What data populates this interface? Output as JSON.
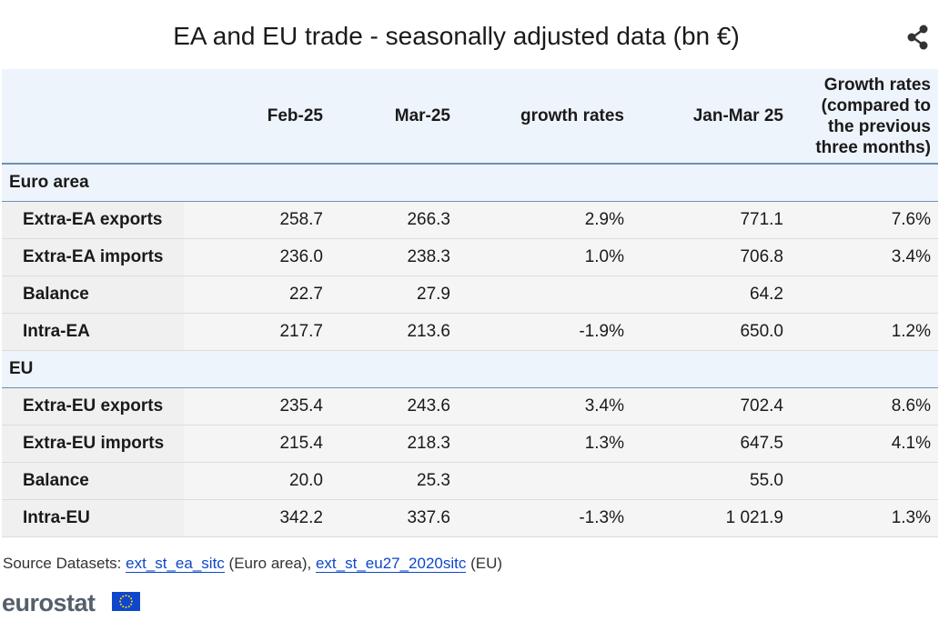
{
  "title": "EA and EU trade - seasonally adjusted data (bn €)",
  "icons": {
    "share": "share-icon"
  },
  "colors": {
    "header_bg": "#eef4fb",
    "row_bg": "#f5f5f5",
    "link": "#0e47cb",
    "flag_blue": "#0e47cb",
    "flag_stars": "#ffd617"
  },
  "chart_data": {
    "type": "table",
    "columns": [
      "",
      "Feb-25",
      "Mar-25",
      "growth rates",
      "Jan-Mar 25",
      "Growth rates (compared to the previous three months)"
    ],
    "groups": [
      {
        "name": "Euro area",
        "rows": [
          {
            "label": "Extra-EA exports",
            "values": [
              "258.7",
              "266.3",
              "2.9%",
              "771.1",
              "7.6%"
            ]
          },
          {
            "label": "Extra-EA imports",
            "values": [
              "236.0",
              "238.3",
              "1.0%",
              "706.8",
              "3.4%"
            ]
          },
          {
            "label": "Balance",
            "values": [
              "22.7",
              "27.9",
              "",
              "64.2",
              ""
            ]
          },
          {
            "label": "Intra-EA",
            "values": [
              "217.7",
              "213.6",
              "-1.9%",
              "650.0",
              "1.2%"
            ]
          }
        ]
      },
      {
        "name": "EU",
        "rows": [
          {
            "label": "Extra-EU exports",
            "values": [
              "235.4",
              "243.6",
              "3.4%",
              "702.4",
              "8.6%"
            ]
          },
          {
            "label": "Extra-EU imports",
            "values": [
              "215.4",
              "218.3",
              "1.3%",
              "647.5",
              "4.1%"
            ]
          },
          {
            "label": "Balance",
            "values": [
              "20.0",
              "25.3",
              "",
              "55.0",
              ""
            ]
          },
          {
            "label": "Intra-EU",
            "values": [
              "342.2",
              "337.6",
              "-1.3%",
              "1 021.9",
              "1.3%"
            ]
          }
        ]
      }
    ]
  },
  "source": {
    "prefix": "Source Datasets: ",
    "link1": "ext_st_ea_sitc",
    "mid": " (Euro area), ",
    "link2": "ext_st_eu27_2020sitc",
    "suffix": " (EU)"
  },
  "logo": {
    "text": "eurostat"
  }
}
